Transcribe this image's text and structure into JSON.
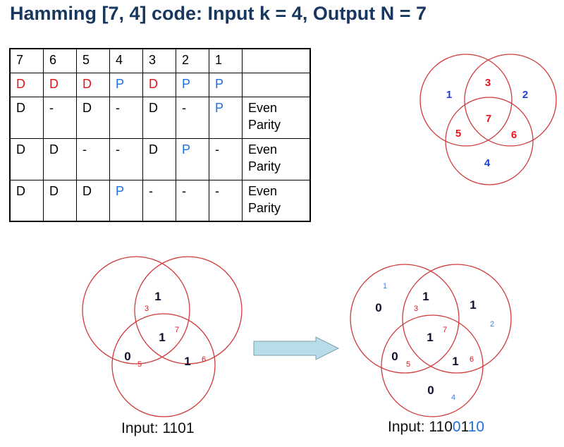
{
  "title": "Hamming [7, 4] code: Input k = 4, Output N = 7",
  "table": {
    "rows": [
      [
        {
          "t": "7",
          "c": "k"
        },
        {
          "t": "6",
          "c": "k"
        },
        {
          "t": "5",
          "c": "k"
        },
        {
          "t": "4",
          "c": "k"
        },
        {
          "t": "3",
          "c": "k"
        },
        {
          "t": "2",
          "c": "k"
        },
        {
          "t": "1",
          "c": "k"
        },
        {
          "t": "",
          "c": "k"
        }
      ],
      [
        {
          "t": "D",
          "c": "r"
        },
        {
          "t": "D",
          "c": "r"
        },
        {
          "t": "D",
          "c": "r"
        },
        {
          "t": "P",
          "c": "b"
        },
        {
          "t": "D",
          "c": "r"
        },
        {
          "t": "P",
          "c": "b"
        },
        {
          "t": "P",
          "c": "b"
        },
        {
          "t": "",
          "c": "k"
        }
      ],
      [
        {
          "t": "D",
          "c": "k"
        },
        {
          "t": "-",
          "c": "k"
        },
        {
          "t": "D",
          "c": "k"
        },
        {
          "t": "-",
          "c": "k"
        },
        {
          "t": "D",
          "c": "k"
        },
        {
          "t": "-",
          "c": "k"
        },
        {
          "t": "P",
          "c": "b"
        },
        {
          "t": "Even Parity",
          "c": "k"
        }
      ],
      [
        {
          "t": "D",
          "c": "k"
        },
        {
          "t": "D",
          "c": "k"
        },
        {
          "t": "-",
          "c": "k"
        },
        {
          "t": "-",
          "c": "k"
        },
        {
          "t": "D",
          "c": "k"
        },
        {
          "t": "P",
          "c": "b"
        },
        {
          "t": "-",
          "c": "k"
        },
        {
          "t": "Even Parity",
          "c": "k"
        }
      ],
      [
        {
          "t": "D",
          "c": "k"
        },
        {
          "t": "D",
          "c": "k"
        },
        {
          "t": "D",
          "c": "k"
        },
        {
          "t": "P",
          "c": "b"
        },
        {
          "t": "-",
          "c": "k"
        },
        {
          "t": "-",
          "c": "k"
        },
        {
          "t": "-",
          "c": "k"
        },
        {
          "t": "Even Parity",
          "c": "k"
        }
      ]
    ]
  },
  "colors": {
    "circle": "#d03a3a",
    "data_position": "#e8141c",
    "parity_position": "#1f6fe0",
    "bit": "#101030",
    "title": "#17375e",
    "arrow": "#b7dde8"
  },
  "venn_positions": {
    "p1": "1",
    "p2": "2",
    "p3": "3",
    "p4": "4",
    "p5": "5",
    "p6": "6",
    "p7": "7"
  },
  "venn_input": {
    "b3": "1",
    "p3": "3",
    "b7": "1",
    "p7": "7",
    "b5": "0",
    "p5": "5",
    "b6": "1",
    "p6": "6",
    "caption": "Input: 1101"
  },
  "venn_output": {
    "p1": "1",
    "b1": "0",
    "b3": "1",
    "p3": "3",
    "b2": "1",
    "p2": "2",
    "b7": "1",
    "p7": "7",
    "b5": "0",
    "p5": "5",
    "b6": "1",
    "p6": "6",
    "b4": "0",
    "p4": "4",
    "caption_prefix": "Input: ",
    "caption_parts": [
      {
        "t": "110",
        "c": "k"
      },
      {
        "t": "0",
        "c": "b"
      },
      {
        "t": "1",
        "c": "k"
      },
      {
        "t": "10",
        "c": "b"
      }
    ]
  }
}
